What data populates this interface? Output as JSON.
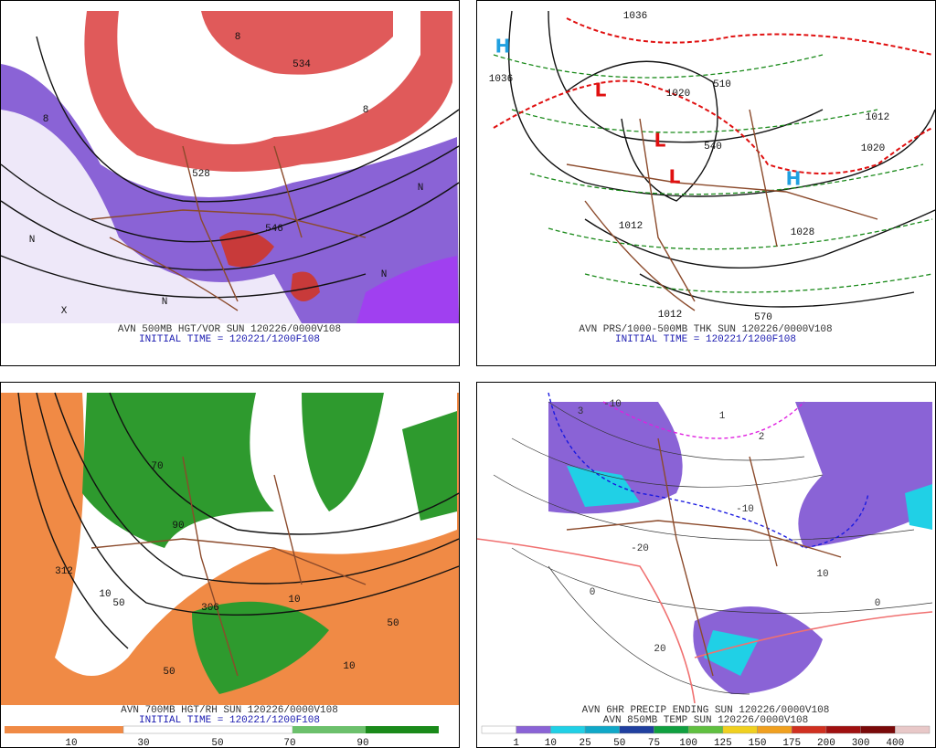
{
  "panels": [
    {
      "caption": "AVN 500MB HGT/VOR SUN 120226/0000V108",
      "initial_time": "INITIAL TIME = 120221/1200F108",
      "labels": [
        "8",
        "8",
        "8",
        "N",
        "N",
        "N",
        "X",
        "N",
        "528",
        "534",
        "546"
      ]
    },
    {
      "caption": "AVN PRS/1000-500MB THK SUN 120226/0000V108",
      "initial_time": "INITIAL TIME = 120221/1200F108",
      "labels": [
        "H",
        "H",
        "L",
        "L",
        "L",
        "1036",
        "1036",
        "1020",
        "1012",
        "1028",
        "1012",
        "1020",
        "1012",
        "570",
        "540",
        "510"
      ]
    },
    {
      "caption": "AVN 700MB HGT/RH SUN 120226/0000V108",
      "initial_time": "INITIAL TIME = 120221/1200F108",
      "labels": [
        "312",
        "10",
        "50",
        "90",
        "50",
        "10",
        "50",
        "10",
        "306",
        "70"
      ],
      "colorbar": [
        10,
        30,
        50,
        70,
        90
      ]
    },
    {
      "caption": "AVN 6HR PRECIP ENDING SUN 120226/0000V108",
      "caption2": "AVN 850MB TEMP SUN 120226/0000V108",
      "labels": [
        "3",
        "1",
        "2",
        "-10",
        "-10",
        "0",
        "20",
        "-20",
        "10",
        "0"
      ],
      "colorbar": [
        1,
        10,
        25,
        50,
        75,
        100,
        125,
        150,
        175,
        200,
        300,
        400
      ]
    }
  ]
}
